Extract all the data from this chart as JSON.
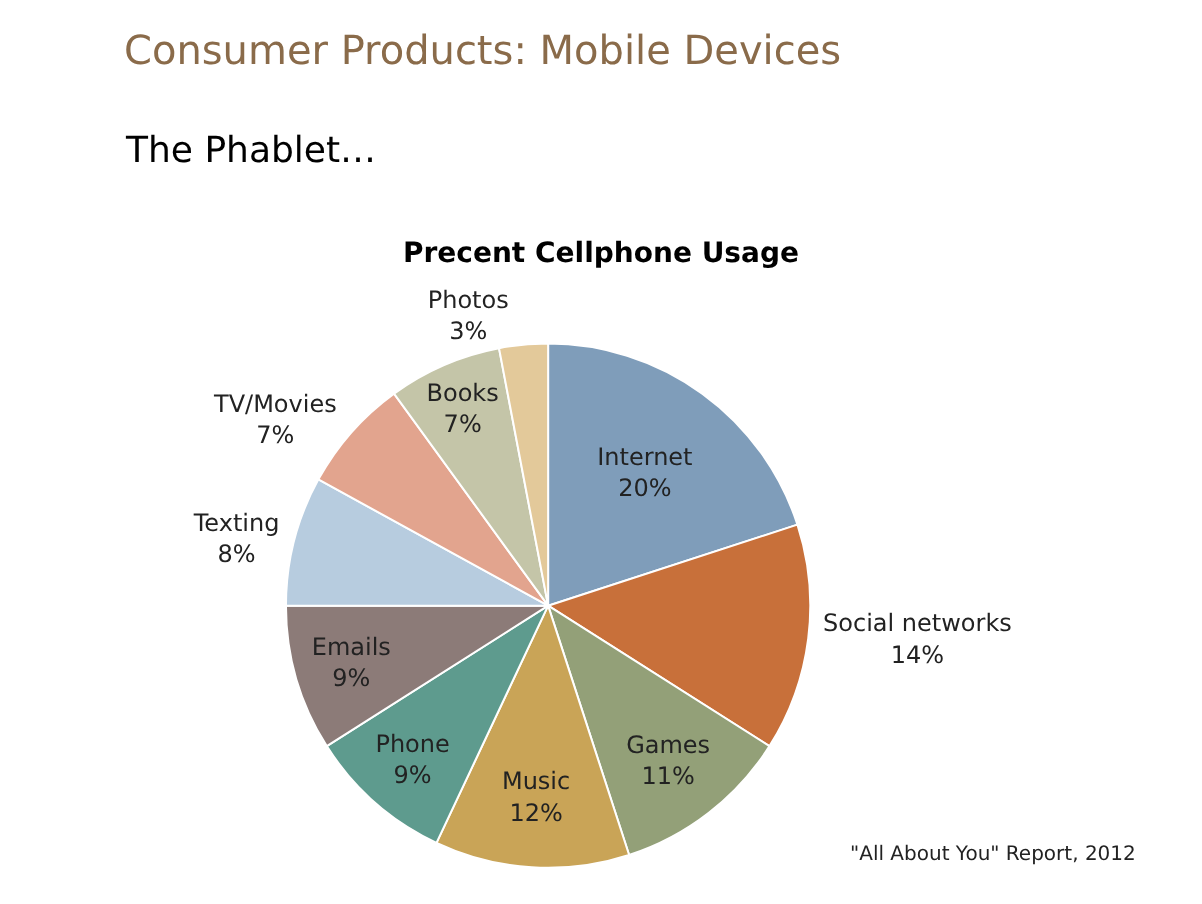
{
  "chart_data": {
    "type": "pie",
    "title": "Precent Cellphone Usage",
    "categories": [
      "Internet",
      "Social networks",
      "Games",
      "Music",
      "Phone",
      "Emails",
      "Texting",
      "TV/Movies",
      "Books",
      "Photos"
    ],
    "values": [
      20,
      14,
      11,
      12,
      9,
      9,
      8,
      7,
      7,
      3
    ],
    "value_labels": [
      "20%",
      "14%",
      "11%",
      "12%",
      "9%",
      "9%",
      "8%",
      "7%",
      "7%",
      "3%"
    ],
    "colors": [
      "#7f9dba",
      "#c8703a",
      "#93a078",
      "#c9a457",
      "#5e9b8e",
      "#8c7b78",
      "#b7ccdf",
      "#e2a48e",
      "#c4c5a8",
      "#e3c99a"
    ],
    "annotations": [
      "Consumer Products: Mobile Devices",
      "The Phablet…",
      "\"All About You\" Report, 2012"
    ],
    "legend": false
  }
}
